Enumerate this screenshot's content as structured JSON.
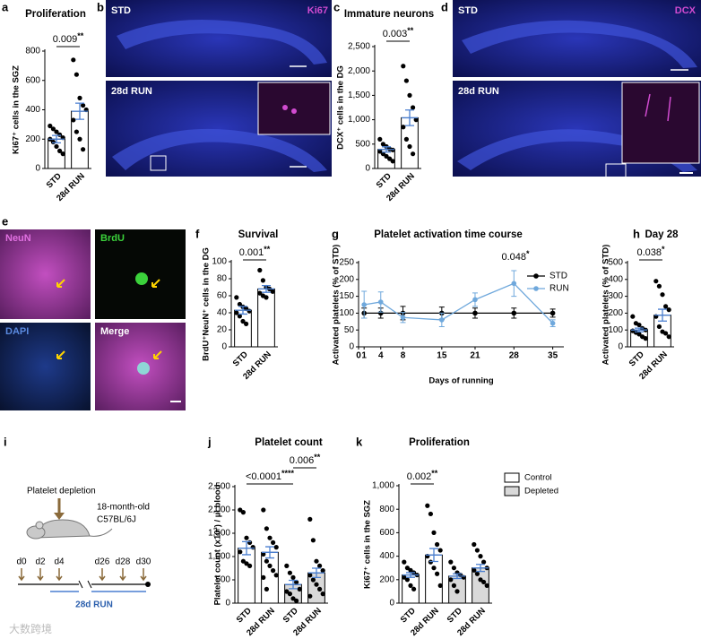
{
  "chart_data": [
    {
      "type": "bar_dots",
      "panel": "a",
      "title": "Proliferation",
      "y_label": "Ki67⁺ cells in the SGZ",
      "categories": [
        "STD",
        "28d RUN"
      ],
      "values": [
        200,
        390
      ],
      "errors": [
        25,
        55
      ],
      "points": [
        [
          290,
          270,
          250,
          230,
          210,
          200,
          180,
          150,
          120,
          100
        ],
        [
          740,
          640,
          480,
          430,
          400,
          330,
          250,
          200,
          130
        ]
      ],
      "bar_colors": [
        "#ffffff",
        "#ffffff"
      ],
      "error_color": "#4a7fd0",
      "ylim": [
        0,
        800
      ],
      "yticks": [
        0,
        200,
        400,
        600,
        800
      ],
      "annotations": [
        {
          "label": "0.009",
          "stars": "**"
        }
      ]
    },
    {
      "type": "bar_dots",
      "panel": "c",
      "title": "Immature neurons",
      "y_label": "DCX⁺ cells in the DG",
      "categories": [
        "STD",
        "28d RUN"
      ],
      "values": [
        390,
        1040
      ],
      "errors": [
        55,
        160
      ],
      "points": [
        [
          600,
          500,
          450,
          400,
          380,
          350,
          300,
          250,
          200,
          150
        ],
        [
          2100,
          1800,
          1500,
          1250,
          1000,
          850,
          600,
          450,
          300
        ]
      ],
      "bar_colors": [
        "#ffffff",
        "#ffffff"
      ],
      "error_color": "#4a7fd0",
      "ylim": [
        0,
        2500
      ],
      "yticks": [
        0,
        500,
        {
          "value": 1000,
          "label": "1,000"
        },
        {
          "value": 1500,
          "label": "1,500"
        },
        {
          "value": 2000,
          "label": "2,000"
        },
        {
          "value": 2500,
          "label": "2,500"
        }
      ],
      "annotations": [
        {
          "label": "0.003",
          "stars": "**"
        }
      ]
    },
    {
      "type": "bar_dots",
      "panel": "f",
      "title": "Survival",
      "y_label": "BrdU⁺NeuN⁺ cells in the DG",
      "categories": [
        "STD",
        "28d RUN"
      ],
      "values": [
        43,
        68
      ],
      "errors": [
        4.5,
        4
      ],
      "points": [
        [
          58,
          50,
          47,
          45,
          42,
          40,
          36,
          30,
          27
        ],
        [
          90,
          78,
          70,
          68,
          65,
          63,
          60,
          58
        ]
      ],
      "bar_colors": [
        "#ffffff",
        "#ffffff"
      ],
      "error_color": "#4a7fd0",
      "ylim": [
        0,
        100
      ],
      "yticks": [
        0,
        20,
        40,
        60,
        80,
        100
      ],
      "annotations": [
        {
          "label": "0.001",
          "stars": "**"
        }
      ]
    },
    {
      "type": "line",
      "panel": "g",
      "title": "Platelet activation time course",
      "y_label": "Activated platelets (% of STD)",
      "x_label": "Days of running",
      "x": [
        1,
        4,
        8,
        15,
        21,
        28,
        35
      ],
      "series": [
        {
          "name": "STD",
          "color": "#000000",
          "values": [
            100,
            100,
            100,
            100,
            100,
            100,
            100
          ],
          "errors": [
            15,
            15,
            20,
            18,
            15,
            15,
            12
          ]
        },
        {
          "name": "RUN",
          "color": "#6fa8dc",
          "values": [
            125,
            133,
            87,
            80,
            140,
            188,
            70
          ],
          "errors": [
            40,
            30,
            15,
            20,
            20,
            38,
            10
          ]
        }
      ],
      "xlim": [
        0,
        37
      ],
      "xticks": [
        0,
        1,
        4,
        8,
        15,
        21,
        28,
        35
      ],
      "ylim": [
        0,
        250
      ],
      "yticks": [
        0,
        50,
        100,
        150,
        200,
        250
      ],
      "annotations": [
        {
          "label": "0.048",
          "stars": "*"
        }
      ]
    },
    {
      "type": "bar_dots",
      "panel": "h",
      "title": "Day 28",
      "y_label": "Activated platelets (% of STD)",
      "categories": [
        "STD",
        "28d RUN"
      ],
      "values": [
        100,
        188
      ],
      "errors": [
        11,
        35
      ],
      "points": [
        [
          180,
          140,
          130,
          110,
          100,
          95,
          85,
          75,
          60,
          50
        ],
        [
          390,
          360,
          310,
          240,
          220,
          180,
          120,
          90,
          80,
          60
        ]
      ],
      "bar_colors": [
        "#ffffff",
        "#ffffff"
      ],
      "error_color": "#4a7fd0",
      "ylim": [
        0,
        500
      ],
      "yticks": [
        0,
        100,
        200,
        300,
        400,
        500
      ],
      "annotations": [
        {
          "label": "0.038",
          "stars": "*"
        }
      ]
    },
    {
      "type": "bar_dots",
      "panel": "j",
      "title": "Platelet count",
      "y_label": "Platelet count (x10³) / µl blood",
      "categories": [
        "STD",
        "28d RUN",
        "STD",
        "28d RUN"
      ],
      "values": [
        1180,
        1090,
        400,
        650
      ],
      "errors": [
        140,
        120,
        90,
        100
      ],
      "points": [
        [
          2000,
          1950,
          1400,
          1300,
          1200,
          1100,
          900,
          850,
          800
        ],
        [
          2000,
          1600,
          1400,
          1300,
          1200,
          1050,
          900,
          800,
          700,
          600,
          550,
          300
        ],
        [
          800,
          650,
          550,
          450,
          300,
          250,
          200,
          100,
          50
        ],
        [
          1800,
          1350,
          900,
          800,
          700,
          600,
          500,
          400,
          300,
          200,
          150
        ]
      ],
      "bar_colors": [
        "#ffffff",
        "#ffffff",
        "#d9d9d9",
        "#d9d9d9"
      ],
      "error_color": "#4a7fd0",
      "ylim": [
        0,
        2500
      ],
      "yticks": [
        0,
        500,
        {
          "value": 1000,
          "label": "1,000"
        },
        {
          "value": 1500,
          "label": "1,500"
        },
        {
          "value": 2000,
          "label": "2,000"
        },
        {
          "value": 2500,
          "label": "2,500"
        }
      ],
      "annotations": [
        {
          "label": "<0.0001",
          "stars": "****"
        },
        {
          "label": "0.006",
          "stars": "**"
        }
      ]
    },
    {
      "type": "bar_dots",
      "panel": "k",
      "title": "Proliferation",
      "y_label": "Ki67⁺ cells in the SGZ",
      "categories": [
        "STD",
        "28d RUN",
        "STD",
        "28d RUN"
      ],
      "values": [
        240,
        410,
        230,
        300
      ],
      "errors": [
        20,
        55,
        20,
        30
      ],
      "points": [
        [
          350,
          300,
          280,
          260,
          240,
          220,
          200,
          150,
          120
        ],
        [
          830,
          760,
          600,
          500,
          450,
          400,
          350,
          300,
          250,
          150
        ],
        [
          350,
          300,
          260,
          240,
          220,
          200,
          150,
          100
        ],
        [
          500,
          450,
          400,
          350,
          300,
          280,
          250,
          200,
          180,
          150
        ]
      ],
      "bar_colors": [
        "#ffffff",
        "#ffffff",
        "#d9d9d9",
        "#d9d9d9"
      ],
      "error_color": "#4a7fd0",
      "ylim": [
        0,
        1000
      ],
      "yticks": [
        0,
        200,
        400,
        600,
        800,
        {
          "value": 1000,
          "label": "1,000"
        }
      ],
      "annotations": [
        {
          "label": "0.002",
          "stars": "**"
        }
      ],
      "legend": [
        {
          "name": "Control",
          "color": "#ffffff"
        },
        {
          "name": "Depleted",
          "color": "#d9d9d9"
        }
      ]
    }
  ],
  "images": [
    {
      "panel": "b",
      "top_label": "STD",
      "stain": "Ki67",
      "bottom_label": "28d RUN"
    },
    {
      "panel": "d",
      "top_label": "STD",
      "stain": "DCX",
      "bottom_label": "28d RUN"
    }
  ],
  "panel_e": {
    "panel": "e",
    "labels": [
      "NeuN",
      "BrdU",
      "DAPI",
      "Merge"
    ]
  },
  "diagram": {
    "panel": "i",
    "treatment": "Platelet depletion",
    "mouse": [
      "18-month-old",
      "C57BL/6J"
    ],
    "days": [
      "d0",
      "d2",
      "d4",
      "d26",
      "d28",
      "d30"
    ],
    "period": "28d RUN"
  },
  "watermark": "大数跨境"
}
